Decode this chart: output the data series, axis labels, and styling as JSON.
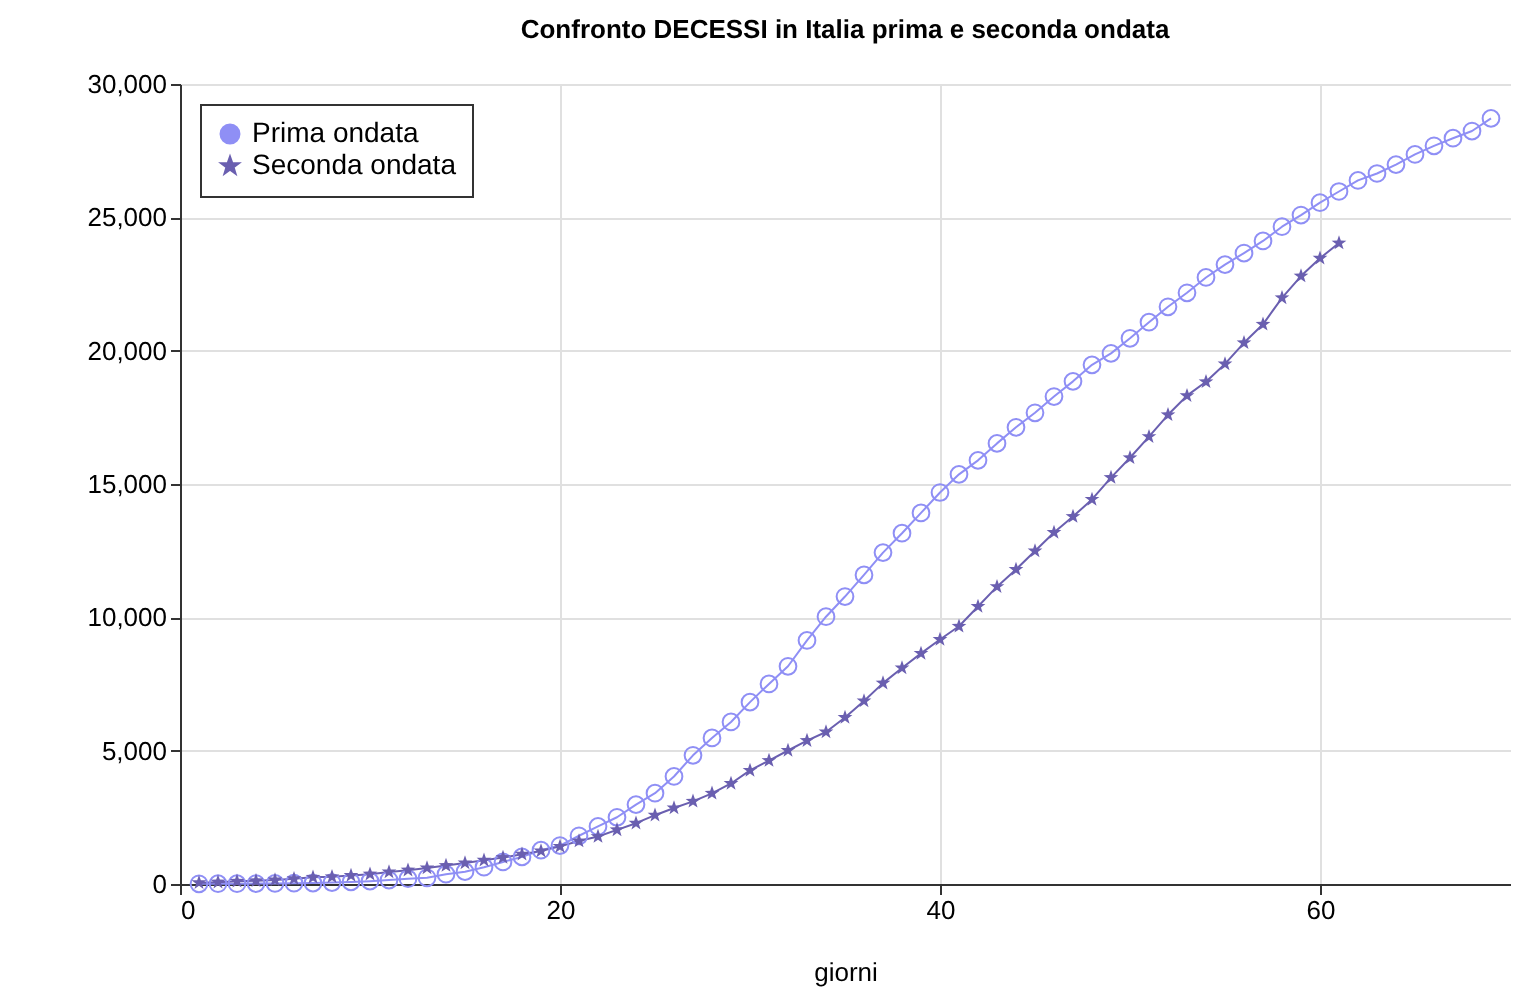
{
  "chart_data": {
    "type": "line",
    "title": "Confronto DECESSI in Italia prima e seconda ondata",
    "xlabel": "giorni",
    "xlim": [
      0,
      70
    ],
    "xticks": [
      0,
      20,
      40,
      60
    ],
    "ylim": [
      0,
      30000
    ],
    "yticks": [
      0,
      {
        "value": 5000,
        "label": "5,000"
      },
      {
        "value": 10000,
        "label": "10,000"
      },
      {
        "value": 15000,
        "label": "15,000"
      },
      {
        "value": 20000,
        "label": "20,000"
      },
      {
        "value": 25000,
        "label": "25,000"
      },
      {
        "value": 30000,
        "label": "30,000"
      }
    ],
    "grid": true,
    "legend": "top left",
    "line_style": "solid",
    "series": [
      {
        "name": "Prima ondata",
        "color": "#8f8ff5",
        "marker": "circle",
        "x": [
          1,
          2,
          3,
          4,
          5,
          6,
          7,
          8,
          9,
          10,
          11,
          12,
          13,
          14,
          15,
          16,
          17,
          18,
          19,
          20,
          21,
          22,
          23,
          24,
          25,
          26,
          27,
          28,
          29,
          30,
          31,
          32,
          33,
          34,
          35,
          36,
          37,
          38,
          39,
          40,
          41,
          42,
          43,
          44,
          45,
          46,
          47,
          48,
          49,
          50,
          51,
          52,
          53,
          54,
          55,
          56,
          57,
          58,
          59,
          60,
          61,
          62,
          63,
          64,
          65,
          66,
          67,
          68,
          69
        ],
        "values": [
          7,
          10,
          12,
          17,
          21,
          29,
          34,
          52,
          79,
          107,
          148,
          197,
          233,
          366,
          463,
          631,
          827,
          1016,
          1266,
          1441,
          1809,
          2158,
          2503,
          2978,
          3405,
          4032,
          4825,
          5476,
          6077,
          6820,
          7503,
          8165,
          9134,
          10023,
          10779,
          11591,
          12428,
          13155,
          13915,
          14681,
          15362,
          15887,
          16523,
          17127,
          17669,
          18279,
          18849,
          19468,
          19899,
          20465,
          21067,
          21645,
          22170,
          22745,
          23227,
          23660,
          24114,
          24648,
          25085,
          25549,
          25969,
          26384,
          26644,
          26977,
          27359,
          27682,
          27967,
          28236,
          28710
        ]
      },
      {
        "name": "Seconda ondata",
        "color": "#6a5fb0",
        "marker": "star",
        "x": [
          1,
          2,
          3,
          4,
          5,
          6,
          7,
          8,
          9,
          10,
          11,
          12,
          13,
          14,
          15,
          16,
          17,
          18,
          19,
          20,
          21,
          22,
          23,
          24,
          25,
          26,
          27,
          28,
          29,
          30,
          31,
          32,
          33,
          34,
          35,
          36,
          37,
          38,
          39,
          40,
          41,
          42,
          43,
          44,
          45,
          46,
          47,
          48,
          49,
          50,
          51,
          52,
          53,
          54,
          55,
          56,
          57,
          58,
          59,
          60,
          61
        ],
        "values": [
          50,
          70,
          100,
          120,
          150,
          200,
          250,
          270,
          320,
          370,
          450,
          520,
          600,
          690,
          790,
          890,
          990,
          1115,
          1240,
          1410,
          1610,
          1780,
          2030,
          2280,
          2580,
          2850,
          3100,
          3400,
          3770,
          4260,
          4630,
          5006,
          5377,
          5700,
          6245,
          6864,
          7533,
          8103,
          8648,
          9169,
          9664,
          10408,
          11151,
          11795,
          12489,
          13183,
          13778,
          14422,
          15240,
          15983,
          16776,
          17594,
          18312,
          18833,
          19502,
          20295,
          20989,
          21980,
          22798,
          23466,
          24036
        ]
      }
    ]
  }
}
